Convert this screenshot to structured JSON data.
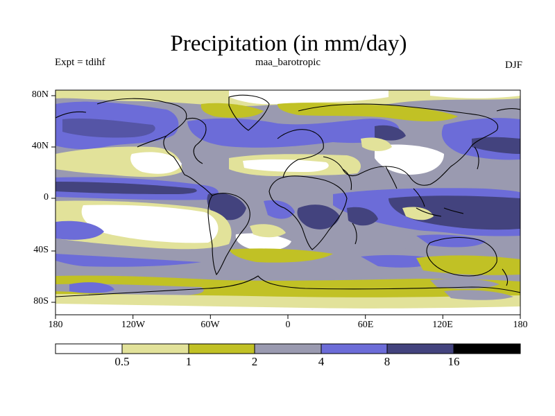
{
  "title": "Precipitation (in mm/day)",
  "left_label": "Expt = tdihf",
  "center_label": "maa_barotropic",
  "right_label": "DJF",
  "x_ticks": [
    "180",
    "120W",
    "60W",
    "0",
    "60E",
    "120E",
    "180"
  ],
  "y_ticks": [
    "80N",
    "40N",
    "0",
    "40S",
    "80S"
  ],
  "colorbar": {
    "levels": [
      "0.5",
      "1",
      "2",
      "4",
      "8",
      "16"
    ],
    "colors": [
      "#ffffff",
      "#e2e29a",
      "#c1c125",
      "#9a9ab0",
      "#6c6cd8",
      "#43437e",
      "#000000"
    ]
  },
  "colors": {
    "white": "#ffffff",
    "light_yellow": "#e2e29a",
    "olive": "#c1c125",
    "gray_blue": "#9a9ab0",
    "blue": "#6c6cd8",
    "dark_blue": "#43437e",
    "coast": "#000000"
  }
}
